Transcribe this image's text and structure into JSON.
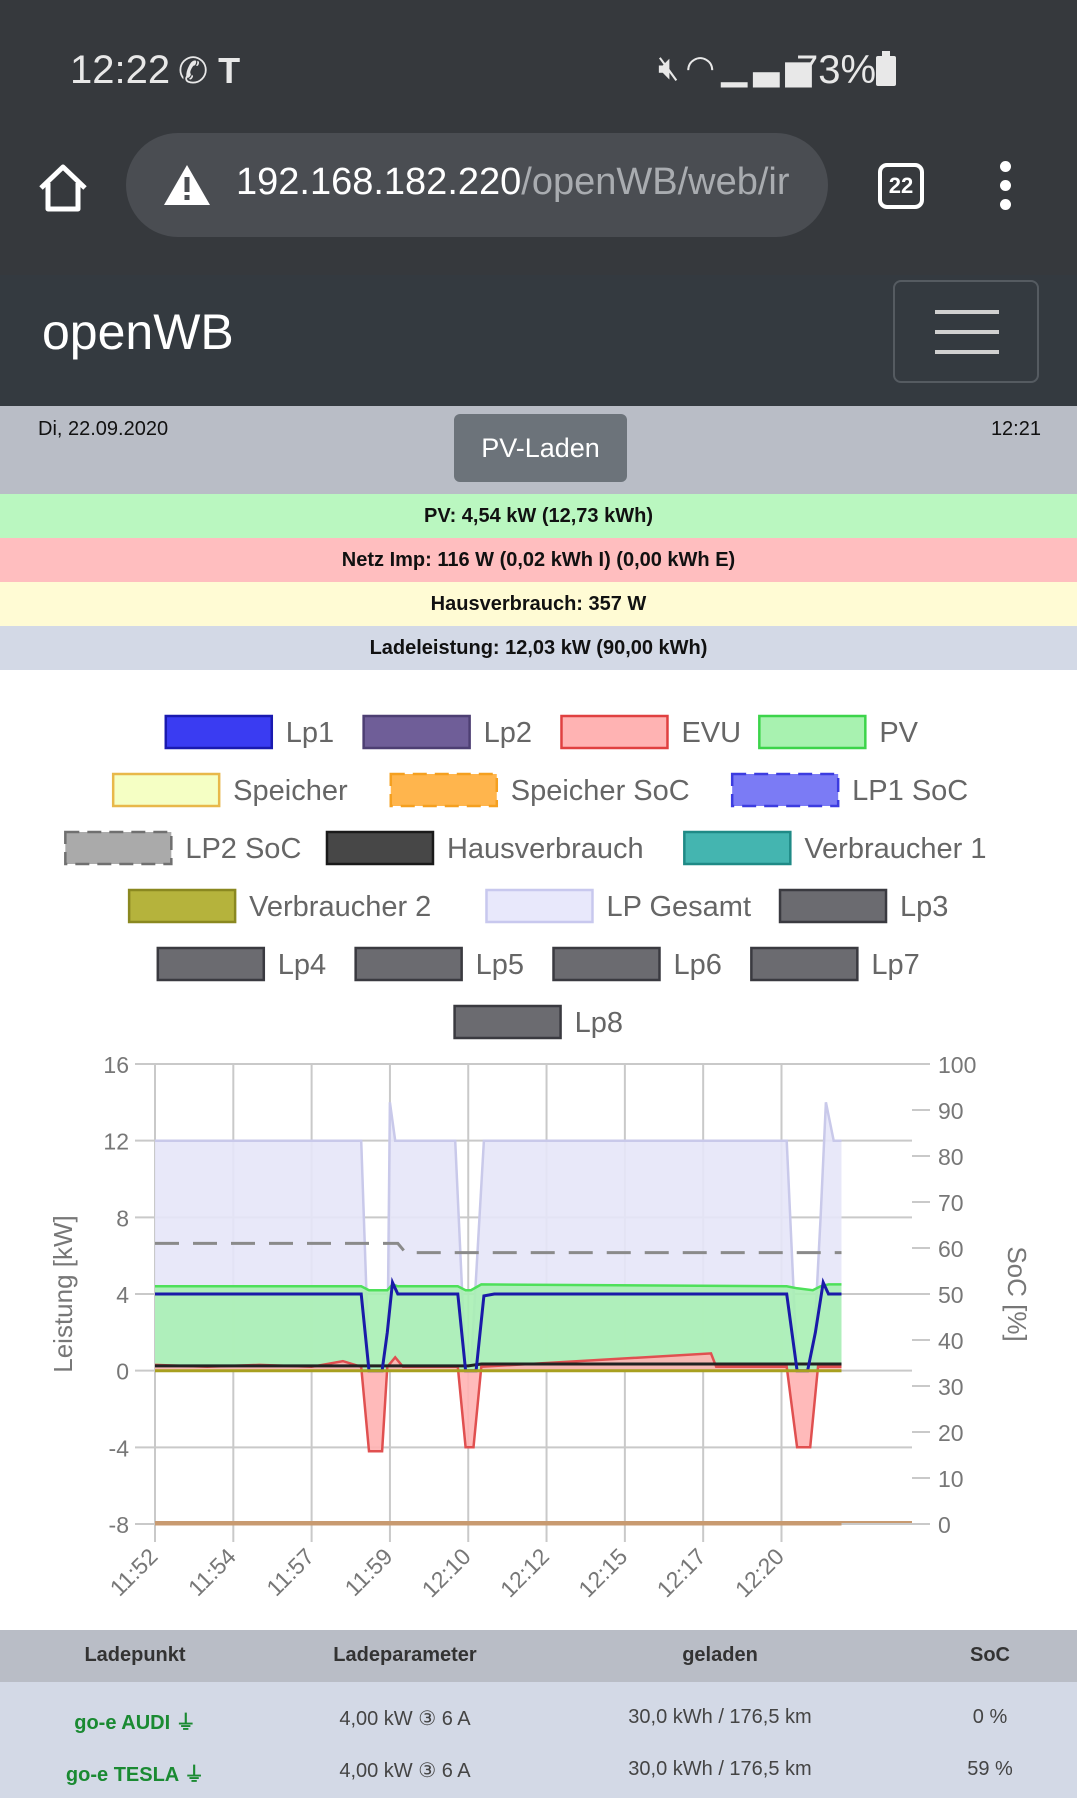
{
  "status_bar": {
    "time": "12:22",
    "left_icons": [
      "whatsapp-icon",
      "tesla-icon"
    ],
    "right_icons": [
      "mute-icon",
      "wifi-icon",
      "signal-icon"
    ],
    "battery": "73%"
  },
  "browser": {
    "url_host": "192.168.182.220",
    "url_path": "/openWB/web/ir",
    "tab_count": "22"
  },
  "navbar": {
    "brand": "openWB"
  },
  "info": {
    "date": "Di, 22.09.2020",
    "time": "12:21",
    "mode_button": "PV-Laden"
  },
  "bars": {
    "pv": "PV: 4,54 kW (12,73 kWh)",
    "netz": "Netz Imp: 116 W (0,02 kWh I) (0,00 kWh E)",
    "haus": "Hausverbrauch: 357 W",
    "lade": "Ladeleistung: 12,03 kW (90,00 kWh)"
  },
  "legend": [
    {
      "label": "Lp1",
      "fill": "#3a3cf2",
      "border": "#1a1ab0",
      "dashed": false
    },
    {
      "label": "Lp2",
      "fill": "#6f5e98",
      "border": "#4d3f73",
      "dashed": false
    },
    {
      "label": "EVU",
      "fill": "#ffb3b3",
      "border": "#e04040",
      "dashed": false
    },
    {
      "label": "PV",
      "fill": "#a8f2b0",
      "border": "#3cd44a",
      "dashed": false
    },
    {
      "label": "Speicher",
      "fill": "#f5ffc4",
      "border": "#e8b84a",
      "dashed": false
    },
    {
      "label": "Speicher SoC",
      "fill": "#ffb54d",
      "border": "#f5a020",
      "dashed": true
    },
    {
      "label": "LP1 SoC",
      "fill": "#7b7bf5",
      "border": "#3c3ce0",
      "dashed": true
    },
    {
      "label": "LP2 SoC",
      "fill": "#aaaaaa",
      "border": "#707070",
      "dashed": true
    },
    {
      "label": "Hausverbrauch",
      "fill": "#474747",
      "border": "#1a1a1a",
      "dashed": false
    },
    {
      "label": "Verbraucher 1",
      "fill": "#44b5b0",
      "border": "#1f8a86",
      "dashed": false
    },
    {
      "label": "Verbraucher 2",
      "fill": "#b5b33c",
      "border": "#8a8820",
      "dashed": false
    },
    {
      "label": "LP Gesamt",
      "fill": "#e8e8fb",
      "border": "#c8c8ee",
      "dashed": false
    },
    {
      "label": "Lp3",
      "fill": "#6b6b70",
      "border": "#3a3a40",
      "dashed": false
    },
    {
      "label": "Lp4",
      "fill": "#6b6b70",
      "border": "#3a3a40",
      "dashed": false
    },
    {
      "label": "Lp5",
      "fill": "#6b6b70",
      "border": "#3a3a40",
      "dashed": false
    },
    {
      "label": "Lp6",
      "fill": "#6b6b70",
      "border": "#3a3a40",
      "dashed": false
    },
    {
      "label": "Lp7",
      "fill": "#6b6b70",
      "border": "#3a3a40",
      "dashed": false
    },
    {
      "label": "Lp8",
      "fill": "#6b6b70",
      "border": "#3a3a40",
      "dashed": false
    }
  ],
  "chart_data": {
    "type": "line",
    "ylabel": "Leistung [kW]",
    "y2label": "SoC [%]",
    "ylim": [
      -8,
      16
    ],
    "yticks": [
      16,
      12,
      8,
      4,
      0,
      -4,
      -8
    ],
    "y2lim": [
      0,
      100
    ],
    "y2ticks": [
      100,
      90,
      80,
      70,
      60,
      50,
      40,
      30,
      20,
      10,
      0
    ],
    "xlim": [
      0,
      29
    ],
    "x_tick_labels": [
      "11:52",
      "11:54",
      "11:57",
      "11:59",
      "12:10",
      "12:12",
      "12:15",
      "12:17",
      "12:20"
    ],
    "x_tick_positions": [
      0,
      3,
      6,
      9,
      12,
      15,
      18,
      21,
      24
    ],
    "grid": true,
    "series": [
      {
        "name": "LP Gesamt",
        "color": "#e5e5f8",
        "line": "#c9c9ea",
        "fill": true,
        "x": [
          0,
          7.9,
          8.2,
          8.9,
          9.0,
          9.2,
          9.6,
          11.5,
          11.9,
          12.1,
          12.6,
          13.5,
          24.2,
          24.6,
          25.2,
          25.5,
          25.7,
          26.0,
          26.3
        ],
        "y": [
          12,
          12,
          0.2,
          0.2,
          14,
          12,
          12,
          12,
          0.2,
          0.2,
          12,
          12,
          12,
          0.2,
          0.2,
          8,
          14,
          12,
          12
        ]
      },
      {
        "name": "PV",
        "color": "#a8f0b4",
        "line": "#4ee05a",
        "fill": true,
        "x": [
          0,
          7.9,
          8.2,
          8.9,
          9.1,
          9.3,
          9.6,
          11.6,
          11.9,
          12.1,
          12.5,
          24.2,
          24.6,
          25.2,
          25.5,
          25.8,
          26.3
        ],
        "y": [
          4.4,
          4.4,
          4.2,
          4.2,
          4.5,
          4.4,
          4.4,
          4.4,
          4.2,
          4.2,
          4.5,
          4.4,
          4.3,
          4.2,
          4.4,
          4.5,
          4.5
        ]
      },
      {
        "name": "EVU",
        "color": "#ffb3b3",
        "line": "#e05050",
        "fill": true,
        "x": [
          0,
          2,
          4,
          6,
          7.2,
          7.9,
          8.2,
          8.7,
          8.9,
          9.2,
          9.5,
          11.6,
          11.9,
          12.2,
          12.5,
          21.3,
          21.5,
          24.2,
          24.6,
          25.1,
          25.4,
          26.3
        ],
        "y": [
          0.3,
          0.2,
          0.3,
          0.2,
          0.5,
          0.2,
          -4.2,
          -4.2,
          0.2,
          0.7,
          0.2,
          0.2,
          -4.0,
          -4.0,
          0.2,
          0.9,
          0.2,
          0.2,
          -4.0,
          -4.0,
          0.2,
          0.2
        ]
      },
      {
        "name": "Hausverbrauch",
        "color": "#222222",
        "line": "#222222",
        "fill": false,
        "x": [
          0,
          12,
          12.5,
          26.3
        ],
        "y": [
          0.25,
          0.25,
          0.35,
          0.35
        ]
      },
      {
        "name": "Lp1",
        "color": "#1a1aa8",
        "line": "#1a1aa8",
        "fill": false,
        "x": [
          0,
          7.9,
          8.2,
          8.7,
          8.9,
          9.1,
          9.3,
          9.6,
          11.6,
          11.9,
          12.3,
          12.6,
          13.0,
          24.2,
          24.6,
          25.0,
          25.3,
          25.6,
          25.8,
          26.3
        ],
        "y": [
          4.0,
          4.0,
          0.0,
          0.0,
          2.0,
          4.6,
          4.0,
          4.0,
          4.0,
          0.0,
          0.0,
          3.9,
          4.0,
          4.0,
          0.0,
          0.0,
          2.0,
          4.6,
          4.0,
          4.0
        ]
      },
      {
        "name": "Verbraucher 2",
        "color": "#a8a020",
        "line": "#a8a020",
        "fill": false,
        "x": [
          0,
          26.3
        ],
        "y": [
          0.0,
          0.0
        ]
      },
      {
        "name": "LP2 SoC",
        "color": "#8a8a8a",
        "line": "#8a8a8a",
        "fill": false,
        "dashed": true,
        "axis": "y2",
        "x": [
          0,
          9.3,
          9.6,
          26.3
        ],
        "y": [
          61,
          61,
          59,
          59
        ]
      },
      {
        "name": "LP1 SoC",
        "color": "#c89a70",
        "line": "#c89a70",
        "fill": false,
        "axis": "y2",
        "x": [
          0,
          26.3
        ],
        "y": [
          0,
          0
        ]
      }
    ]
  },
  "table": {
    "headers": [
      "Ladepunkt",
      "Ladeparameter",
      "geladen",
      "SoC"
    ],
    "rows": [
      {
        "name": "go-e AUDI",
        "param": "4,00 kW ③ 6 A",
        "geladen": "30,0 kWh / 176,5 km",
        "soc": "0 %"
      },
      {
        "name": "go-e TESLA",
        "param": "4,00 kW ③ 6 A",
        "geladen": "30,0 kWh / 176,5 km",
        "soc": "59 %"
      }
    ]
  }
}
